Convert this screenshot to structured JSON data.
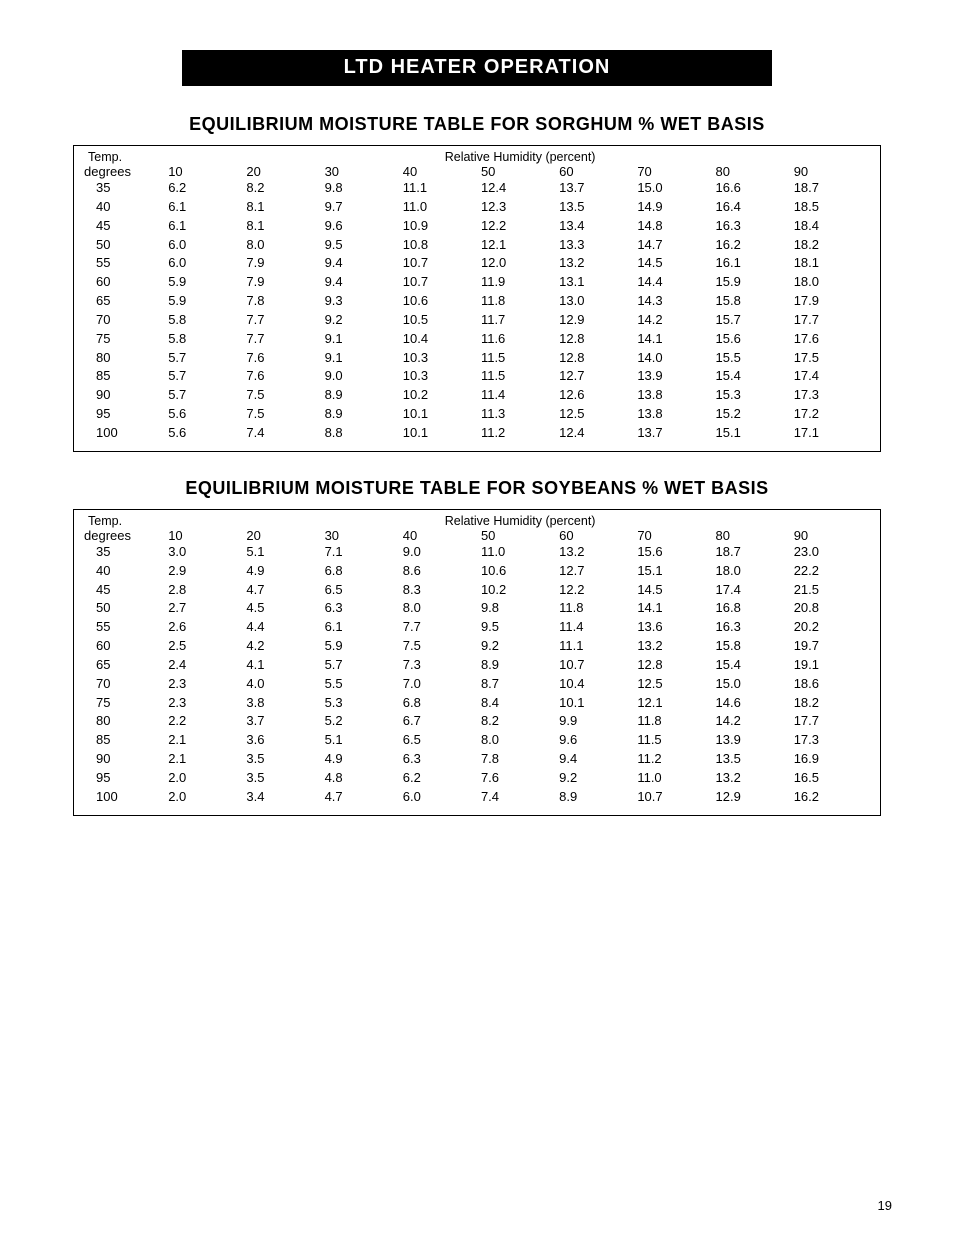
{
  "banner": "LTD HEATER OPERATION",
  "page_number": "19",
  "header_labels": {
    "temp_top": "Temp.",
    "rh_top": "Relative Humidity (percent)",
    "degrees": "degrees"
  },
  "humidity_columns": [
    "10",
    "20",
    "30",
    "40",
    "50",
    "60",
    "70",
    "80",
    "90"
  ],
  "tables": [
    {
      "title": "EQUILIBRIUM MOISTURE TABLE FOR SORGHUM % WET BASIS",
      "rows": [
        {
          "temp": "35",
          "vals": [
            "6.2",
            "8.2",
            "9.8",
            "11.1",
            "12.4",
            "13.7",
            "15.0",
            "16.6",
            "18.7"
          ]
        },
        {
          "temp": "40",
          "vals": [
            "6.1",
            "8.1",
            "9.7",
            "11.0",
            "12.3",
            "13.5",
            "14.9",
            "16.4",
            "18.5"
          ]
        },
        {
          "temp": "45",
          "vals": [
            "6.1",
            "8.1",
            "9.6",
            "10.9",
            "12.2",
            "13.4",
            "14.8",
            "16.3",
            "18.4"
          ]
        },
        {
          "temp": "50",
          "vals": [
            "6.0",
            "8.0",
            "9.5",
            "10.8",
            "12.1",
            "13.3",
            "14.7",
            "16.2",
            "18.2"
          ]
        },
        {
          "temp": "55",
          "vals": [
            "6.0",
            "7.9",
            "9.4",
            "10.7",
            "12.0",
            "13.2",
            "14.5",
            "16.1",
            "18.1"
          ]
        },
        {
          "temp": "60",
          "vals": [
            "5.9",
            "7.9",
            "9.4",
            "10.7",
            "11.9",
            "13.1",
            "14.4",
            "15.9",
            "18.0"
          ]
        },
        {
          "temp": "65",
          "vals": [
            "5.9",
            "7.8",
            "9.3",
            "10.6",
            "11.8",
            "13.0",
            "14.3",
            "15.8",
            "17.9"
          ]
        },
        {
          "temp": "70",
          "vals": [
            "5.8",
            "7.7",
            "9.2",
            "10.5",
            "11.7",
            "12.9",
            "14.2",
            "15.7",
            "17.7"
          ]
        },
        {
          "temp": "75",
          "vals": [
            "5.8",
            "7.7",
            "9.1",
            "10.4",
            "11.6",
            "12.8",
            "14.1",
            "15.6",
            "17.6"
          ]
        },
        {
          "temp": "80",
          "vals": [
            "5.7",
            "7.6",
            "9.1",
            "10.3",
            "11.5",
            "12.8",
            "14.0",
            "15.5",
            "17.5"
          ]
        },
        {
          "temp": "85",
          "vals": [
            "5.7",
            "7.6",
            "9.0",
            "10.3",
            "11.5",
            "12.7",
            "13.9",
            "15.4",
            "17.4"
          ]
        },
        {
          "temp": "90",
          "vals": [
            "5.7",
            "7.5",
            "8.9",
            "10.2",
            "11.4",
            "12.6",
            "13.8",
            "15.3",
            "17.3"
          ]
        },
        {
          "temp": "95",
          "vals": [
            "5.6",
            "7.5",
            "8.9",
            "10.1",
            "11.3",
            "12.5",
            "13.8",
            "15.2",
            "17.2"
          ]
        },
        {
          "temp": "100",
          "vals": [
            "5.6",
            "7.4",
            "8.8",
            "10.1",
            "11.2",
            "12.4",
            "13.7",
            "15.1",
            "17.1"
          ]
        }
      ]
    },
    {
      "title": "EQUILIBRIUM MOISTURE TABLE FOR SOYBEANS % WET BASIS",
      "rows": [
        {
          "temp": "35",
          "vals": [
            "3.0",
            "5.1",
            "7.1",
            "9.0",
            "11.0",
            "13.2",
            "15.6",
            "18.7",
            "23.0"
          ]
        },
        {
          "temp": "40",
          "vals": [
            "2.9",
            "4.9",
            "6.8",
            "8.6",
            "10.6",
            "12.7",
            "15.1",
            "18.0",
            "22.2"
          ]
        },
        {
          "temp": "45",
          "vals": [
            "2.8",
            "4.7",
            "6.5",
            "8.3",
            "10.2",
            "12.2",
            "14.5",
            "17.4",
            "21.5"
          ]
        },
        {
          "temp": "50",
          "vals": [
            "2.7",
            "4.5",
            "6.3",
            "8.0",
            "9.8",
            "11.8",
            "14.1",
            "16.8",
            "20.8"
          ]
        },
        {
          "temp": "55",
          "vals": [
            "2.6",
            "4.4",
            "6.1",
            "7.7",
            "9.5",
            "11.4",
            "13.6",
            "16.3",
            "20.2"
          ]
        },
        {
          "temp": "60",
          "vals": [
            "2.5",
            "4.2",
            "5.9",
            "7.5",
            "9.2",
            "11.1",
            "13.2",
            "15.8",
            "19.7"
          ]
        },
        {
          "temp": "65",
          "vals": [
            "2.4",
            "4.1",
            "5.7",
            "7.3",
            "8.9",
            "10.7",
            "12.8",
            "15.4",
            "19.1"
          ]
        },
        {
          "temp": "70",
          "vals": [
            "2.3",
            "4.0",
            "5.5",
            "7.0",
            "8.7",
            "10.4",
            "12.5",
            "15.0",
            "18.6"
          ]
        },
        {
          "temp": "75",
          "vals": [
            "2.3",
            "3.8",
            "5.3",
            "6.8",
            "8.4",
            "10.1",
            "12.1",
            "14.6",
            "18.2"
          ]
        },
        {
          "temp": "80",
          "vals": [
            "2.2",
            "3.7",
            "5.2",
            "6.7",
            "8.2",
            "9.9",
            "11.8",
            "14.2",
            "17.7"
          ]
        },
        {
          "temp": "85",
          "vals": [
            "2.1",
            "3.6",
            "5.1",
            "6.5",
            "8.0",
            "9.6",
            "11.5",
            "13.9",
            "17.3"
          ]
        },
        {
          "temp": "90",
          "vals": [
            "2.1",
            "3.5",
            "4.9",
            "6.3",
            "7.8",
            "9.4",
            "11.2",
            "13.5",
            "16.9"
          ]
        },
        {
          "temp": "95",
          "vals": [
            "2.0",
            "3.5",
            "4.8",
            "6.2",
            "7.6",
            "9.2",
            "11.0",
            "13.2",
            "16.5"
          ]
        },
        {
          "temp": "100",
          "vals": [
            "2.0",
            "3.4",
            "4.7",
            "6.0",
            "7.4",
            "8.9",
            "10.7",
            "12.9",
            "16.2"
          ]
        }
      ]
    }
  ],
  "styling": {
    "page_bg": "#ffffff",
    "banner_bg": "#000000",
    "banner_fg": "#ffffff",
    "text_color": "#000000",
    "border_color": "#000000",
    "body_fontsize": 13,
    "title_fontsize": 18,
    "banner_fontsize": 20,
    "font_family": "Arial, Helvetica, sans-serif"
  }
}
